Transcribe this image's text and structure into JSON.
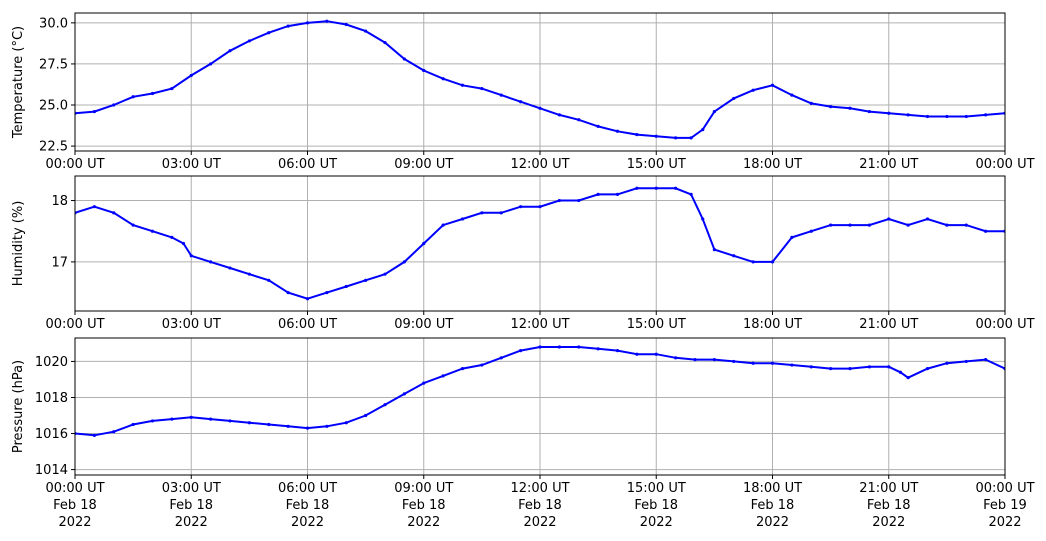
{
  "chart_data": [
    {
      "type": "line",
      "ylabel": "Temperature (°C)",
      "xlabel": "",
      "xlim": [
        "2022-02-18T00:00Z",
        "2022-02-19T00:00Z"
      ],
      "ylim": [
        22.2,
        30.6
      ],
      "yticks": [
        22.5,
        25.0,
        27.5,
        30.0
      ],
      "ytick_labels": [
        "22.5",
        "25.0",
        "27.5",
        "30.0"
      ],
      "xtick_labels": [
        [
          "00:00 UT"
        ],
        [
          "03:00 UT"
        ],
        [
          "06:00 UT"
        ],
        [
          "09:00 UT"
        ],
        [
          "12:00 UT"
        ],
        [
          "15:00 UT"
        ],
        [
          "18:00 UT"
        ],
        [
          "21:00 UT"
        ],
        [
          "00:00 UT"
        ]
      ],
      "grid": true,
      "color": "#0000ff",
      "series": [
        {
          "x_hours": [
            0,
            0.5,
            1,
            1.5,
            2,
            2.5,
            3,
            3.5,
            4,
            4.5,
            5,
            5.5,
            6,
            6.5,
            7,
            7.5,
            8,
            8.5,
            9,
            9.5,
            10,
            10.5,
            11,
            11.5,
            12,
            12.5,
            13,
            13.5,
            14,
            14.5,
            15,
            15.5,
            15.9,
            16.2,
            16.5,
            17,
            17.5,
            18,
            18.5,
            19,
            19.5,
            20,
            20.5,
            21,
            21.5,
            22,
            22.5,
            23,
            23.5,
            24
          ],
          "values": [
            24.5,
            24.6,
            25.0,
            25.5,
            25.7,
            26.0,
            26.8,
            27.5,
            28.3,
            28.9,
            29.4,
            29.8,
            30.0,
            30.1,
            29.9,
            29.5,
            28.8,
            27.8,
            27.1,
            26.6,
            26.2,
            26.0,
            25.6,
            25.2,
            24.8,
            24.4,
            24.1,
            23.7,
            23.4,
            23.2,
            23.1,
            23.0,
            23.0,
            23.5,
            24.6,
            25.4,
            25.9,
            26.2,
            25.6,
            25.1,
            24.9,
            24.8,
            24.6,
            24.5,
            24.4,
            24.3,
            24.3,
            24.3,
            24.4,
            24.5
          ]
        }
      ]
    },
    {
      "type": "line",
      "ylabel": "Humidity (%)",
      "xlabel": "",
      "xlim": [
        "2022-02-18T00:00Z",
        "2022-02-19T00:00Z"
      ],
      "ylim": [
        16.2,
        18.4
      ],
      "yticks": [
        17,
        18
      ],
      "ytick_labels": [
        "17",
        "18"
      ],
      "xtick_labels": [
        [
          "00:00 UT"
        ],
        [
          "03:00 UT"
        ],
        [
          "06:00 UT"
        ],
        [
          "09:00 UT"
        ],
        [
          "12:00 UT"
        ],
        [
          "15:00 UT"
        ],
        [
          "18:00 UT"
        ],
        [
          "21:00 UT"
        ],
        [
          "00:00 UT"
        ]
      ],
      "grid": true,
      "color": "#0000ff",
      "series": [
        {
          "x_hours": [
            0,
            0.5,
            1,
            1.5,
            2,
            2.5,
            2.8,
            3,
            3.5,
            4,
            4.5,
            5,
            5.5,
            6,
            6.5,
            7,
            7.5,
            8,
            8.5,
            9,
            9.5,
            10,
            10.5,
            11,
            11.5,
            12,
            12.5,
            13,
            13.5,
            14,
            14.5,
            15,
            15.5,
            15.9,
            16.2,
            16.5,
            17,
            17.5,
            18,
            18.5,
            19,
            19.5,
            20,
            20.5,
            21,
            21.5,
            22,
            22.5,
            23,
            23.5,
            24
          ],
          "values": [
            17.8,
            17.9,
            17.8,
            17.6,
            17.5,
            17.4,
            17.3,
            17.1,
            17.0,
            16.9,
            16.8,
            16.7,
            16.5,
            16.4,
            16.5,
            16.6,
            16.7,
            16.8,
            17.0,
            17.3,
            17.6,
            17.7,
            17.8,
            17.8,
            17.9,
            17.9,
            18.0,
            18.0,
            18.1,
            18.1,
            18.2,
            18.2,
            18.2,
            18.1,
            17.7,
            17.2,
            17.1,
            17.0,
            17.0,
            17.4,
            17.5,
            17.6,
            17.6,
            17.6,
            17.7,
            17.6,
            17.7,
            17.6,
            17.6,
            17.5,
            17.5
          ]
        }
      ]
    },
    {
      "type": "line",
      "ylabel": "Pressure (hPa)",
      "xlabel": "",
      "xlim": [
        "2022-02-18T00:00Z",
        "2022-02-19T00:00Z"
      ],
      "ylim": [
        1013.7,
        1021.3
      ],
      "yticks": [
        1014,
        1016,
        1018,
        1020
      ],
      "ytick_labels": [
        "1014",
        "1016",
        "1018",
        "1020"
      ],
      "xtick_labels": [
        [
          "00:00 UT",
          "Feb 18",
          "2022"
        ],
        [
          "03:00 UT",
          "Feb 18",
          "2022"
        ],
        [
          "06:00 UT",
          "Feb 18",
          "2022"
        ],
        [
          "09:00 UT",
          "Feb 18",
          "2022"
        ],
        [
          "12:00 UT",
          "Feb 18",
          "2022"
        ],
        [
          "15:00 UT",
          "Feb 18",
          "2022"
        ],
        [
          "18:00 UT",
          "Feb 18",
          "2022"
        ],
        [
          "21:00 UT",
          "Feb 18",
          "2022"
        ],
        [
          "00:00 UT",
          "Feb 19",
          "2022"
        ]
      ],
      "grid": true,
      "color": "#0000ff",
      "series": [
        {
          "x_hours": [
            0,
            0.5,
            1,
            1.5,
            2,
            2.5,
            3,
            3.5,
            4,
            4.5,
            5,
            5.5,
            6,
            6.5,
            7,
            7.5,
            8,
            8.5,
            9,
            9.5,
            10,
            10.5,
            11,
            11.5,
            12,
            12.5,
            13,
            13.5,
            14,
            14.5,
            15,
            15.5,
            16,
            16.5,
            17,
            17.5,
            18,
            18.5,
            19,
            19.5,
            20,
            20.5,
            21,
            21.3,
            21.5,
            22,
            22.5,
            23,
            23.5,
            24
          ],
          "values": [
            1016.0,
            1015.9,
            1016.1,
            1016.5,
            1016.7,
            1016.8,
            1016.9,
            1016.8,
            1016.7,
            1016.6,
            1016.5,
            1016.4,
            1016.3,
            1016.4,
            1016.6,
            1017.0,
            1017.6,
            1018.2,
            1018.8,
            1019.2,
            1019.6,
            1019.8,
            1020.2,
            1020.6,
            1020.8,
            1020.8,
            1020.8,
            1020.7,
            1020.6,
            1020.4,
            1020.4,
            1020.2,
            1020.1,
            1020.1,
            1020.0,
            1019.9,
            1019.9,
            1019.8,
            1019.7,
            1019.6,
            1019.6,
            1019.7,
            1019.7,
            1019.4,
            1019.1,
            1019.6,
            1019.9,
            1020.0,
            1020.1,
            1019.6
          ]
        }
      ]
    }
  ]
}
